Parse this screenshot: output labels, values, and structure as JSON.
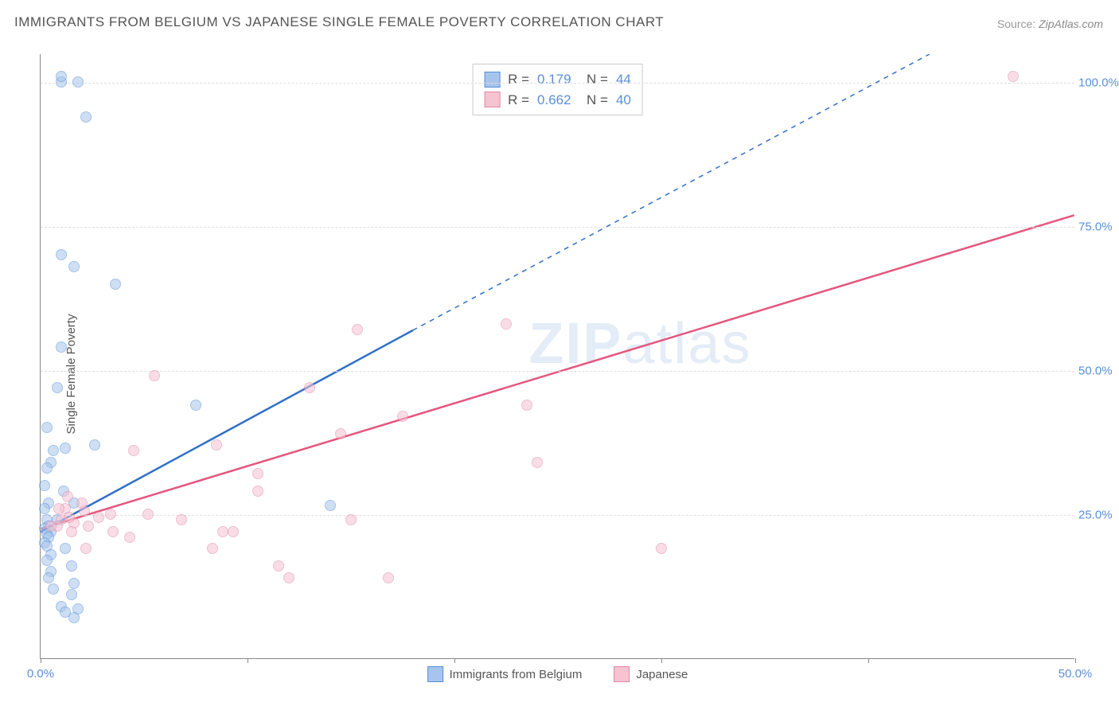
{
  "title": "IMMIGRANTS FROM BELGIUM VS JAPANESE SINGLE FEMALE POVERTY CORRELATION CHART",
  "source_label": "Source:",
  "source_value": "ZipAtlas.com",
  "ylabel": "Single Female Poverty",
  "watermark_bold": "ZIP",
  "watermark_rest": "atlas",
  "chart": {
    "type": "scatter",
    "xlim": [
      0,
      50
    ],
    "ylim": [
      0,
      105
    ],
    "xticks": [
      0,
      10,
      20,
      30,
      40,
      50
    ],
    "xtick_labels": [
      "0.0%",
      "",
      "",
      "",
      "",
      "50.0%"
    ],
    "yticks": [
      25,
      50,
      75,
      100
    ],
    "ytick_labels": [
      "25.0%",
      "50.0%",
      "75.0%",
      "100.0%"
    ],
    "grid_color": "#dddddd",
    "axis_color": "#888888",
    "tick_label_color": "#5b8fd6",
    "background_color": "#ffffff",
    "point_radius": 7,
    "point_opacity": 0.55,
    "series": [
      {
        "name": "Immigrants from Belgium",
        "color_fill": "#a7c5ec",
        "color_stroke": "#5b8fd6",
        "R": 0.179,
        "N": 44,
        "trend": {
          "x1": 0,
          "y1": 22,
          "x2": 18,
          "y2": 57,
          "color": "#2f6fc9",
          "width": 2.5,
          "dash_ext_to_x": 43,
          "dash_ext_to_y": 105
        },
        "points": [
          [
            1.0,
            100
          ],
          [
            1.8,
            100
          ],
          [
            1.0,
            101
          ],
          [
            2.2,
            94
          ],
          [
            1.0,
            70
          ],
          [
            1.6,
            68
          ],
          [
            3.6,
            65
          ],
          [
            1.0,
            54
          ],
          [
            0.8,
            47
          ],
          [
            0.3,
            40
          ],
          [
            7.5,
            44
          ],
          [
            0.6,
            36
          ],
          [
            1.2,
            36.5
          ],
          [
            2.6,
            37
          ],
          [
            0.5,
            34
          ],
          [
            0.3,
            33
          ],
          [
            0.2,
            30
          ],
          [
            1.1,
            29
          ],
          [
            0.4,
            27
          ],
          [
            1.6,
            27
          ],
          [
            0.2,
            26
          ],
          [
            14,
            26.5
          ],
          [
            0.3,
            24
          ],
          [
            0.8,
            24
          ],
          [
            0.4,
            23
          ],
          [
            0.2,
            22.5
          ],
          [
            0.5,
            22
          ],
          [
            0.3,
            21.5
          ],
          [
            0.4,
            21
          ],
          [
            0.2,
            20
          ],
          [
            0.3,
            19.5
          ],
          [
            1.2,
            19
          ],
          [
            0.5,
            18
          ],
          [
            0.3,
            17
          ],
          [
            1.5,
            16
          ],
          [
            0.5,
            15
          ],
          [
            0.4,
            14
          ],
          [
            1.6,
            13
          ],
          [
            0.6,
            12
          ],
          [
            1.5,
            11
          ],
          [
            1.0,
            9
          ],
          [
            1.8,
            8.5
          ],
          [
            1.2,
            8
          ],
          [
            1.6,
            7
          ]
        ]
      },
      {
        "name": "Japanese",
        "color_fill": "#f5c3d2",
        "color_stroke": "#e08aa8",
        "R": 0.662,
        "N": 40,
        "trend": {
          "x1": 0,
          "y1": 22.5,
          "x2": 50,
          "y2": 77,
          "color": "#e5567e",
          "width": 2.5
        },
        "points": [
          [
            47,
            101
          ],
          [
            15.3,
            57
          ],
          [
            22.5,
            58
          ],
          [
            5.5,
            49
          ],
          [
            13,
            47
          ],
          [
            17.5,
            42
          ],
          [
            23.5,
            44
          ],
          [
            14.5,
            39
          ],
          [
            8.5,
            37
          ],
          [
            4.5,
            36
          ],
          [
            10.5,
            32
          ],
          [
            24,
            34
          ],
          [
            10.5,
            29
          ],
          [
            1.3,
            28
          ],
          [
            2.0,
            27
          ],
          [
            1.2,
            26
          ],
          [
            2.1,
            25.5
          ],
          [
            3.4,
            25
          ],
          [
            2.8,
            24.5
          ],
          [
            5.2,
            25
          ],
          [
            1.0,
            24
          ],
          [
            1.6,
            23.5
          ],
          [
            0.8,
            23
          ],
          [
            2.3,
            23
          ],
          [
            6.8,
            24
          ],
          [
            15,
            24
          ],
          [
            9.3,
            22
          ],
          [
            3.5,
            22
          ],
          [
            1.5,
            22
          ],
          [
            0.5,
            23
          ],
          [
            4.3,
            21
          ],
          [
            8.8,
            22
          ],
          [
            2.2,
            19
          ],
          [
            8.3,
            19
          ],
          [
            11.5,
            16
          ],
          [
            30,
            19
          ],
          [
            16.8,
            14
          ],
          [
            12,
            14
          ],
          [
            0.9,
            26
          ],
          [
            1.4,
            24.5
          ]
        ]
      }
    ],
    "legend_top": {
      "border_color": "#cccccc",
      "rows": [
        {
          "swatch_fill": "#a7c5ec",
          "swatch_stroke": "#5b8fd6",
          "r_label": "R =",
          "r_val": "0.179",
          "n_label": "N =",
          "n_val": "44"
        },
        {
          "swatch_fill": "#f5c3d2",
          "swatch_stroke": "#e08aa8",
          "r_label": "R =",
          "r_val": "0.662",
          "n_label": "N =",
          "n_val": "40"
        }
      ]
    },
    "legend_bottom": [
      {
        "swatch_fill": "#a7c5ec",
        "swatch_stroke": "#5b8fd6",
        "label": "Immigrants from Belgium"
      },
      {
        "swatch_fill": "#f5c3d2",
        "swatch_stroke": "#e08aa8",
        "label": "Japanese"
      }
    ]
  }
}
